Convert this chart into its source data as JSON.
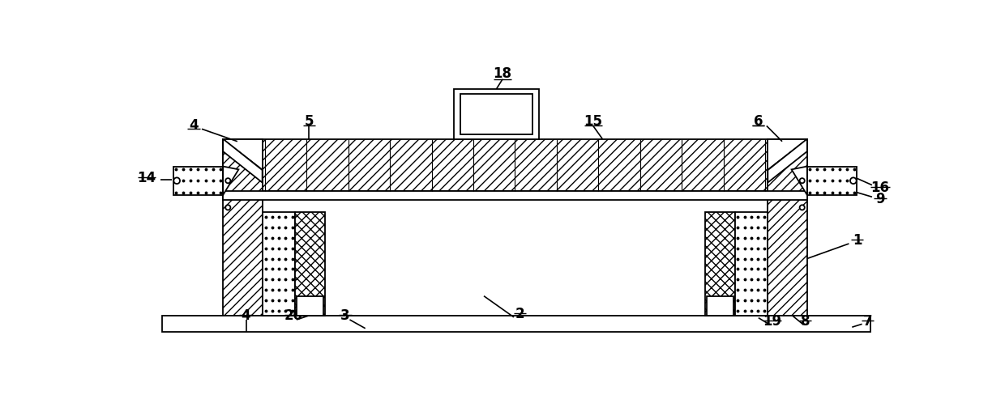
{
  "fig_width": 12.4,
  "fig_height": 4.89,
  "dpi": 100,
  "bg_color": "#ffffff",
  "lw": 1.3
}
